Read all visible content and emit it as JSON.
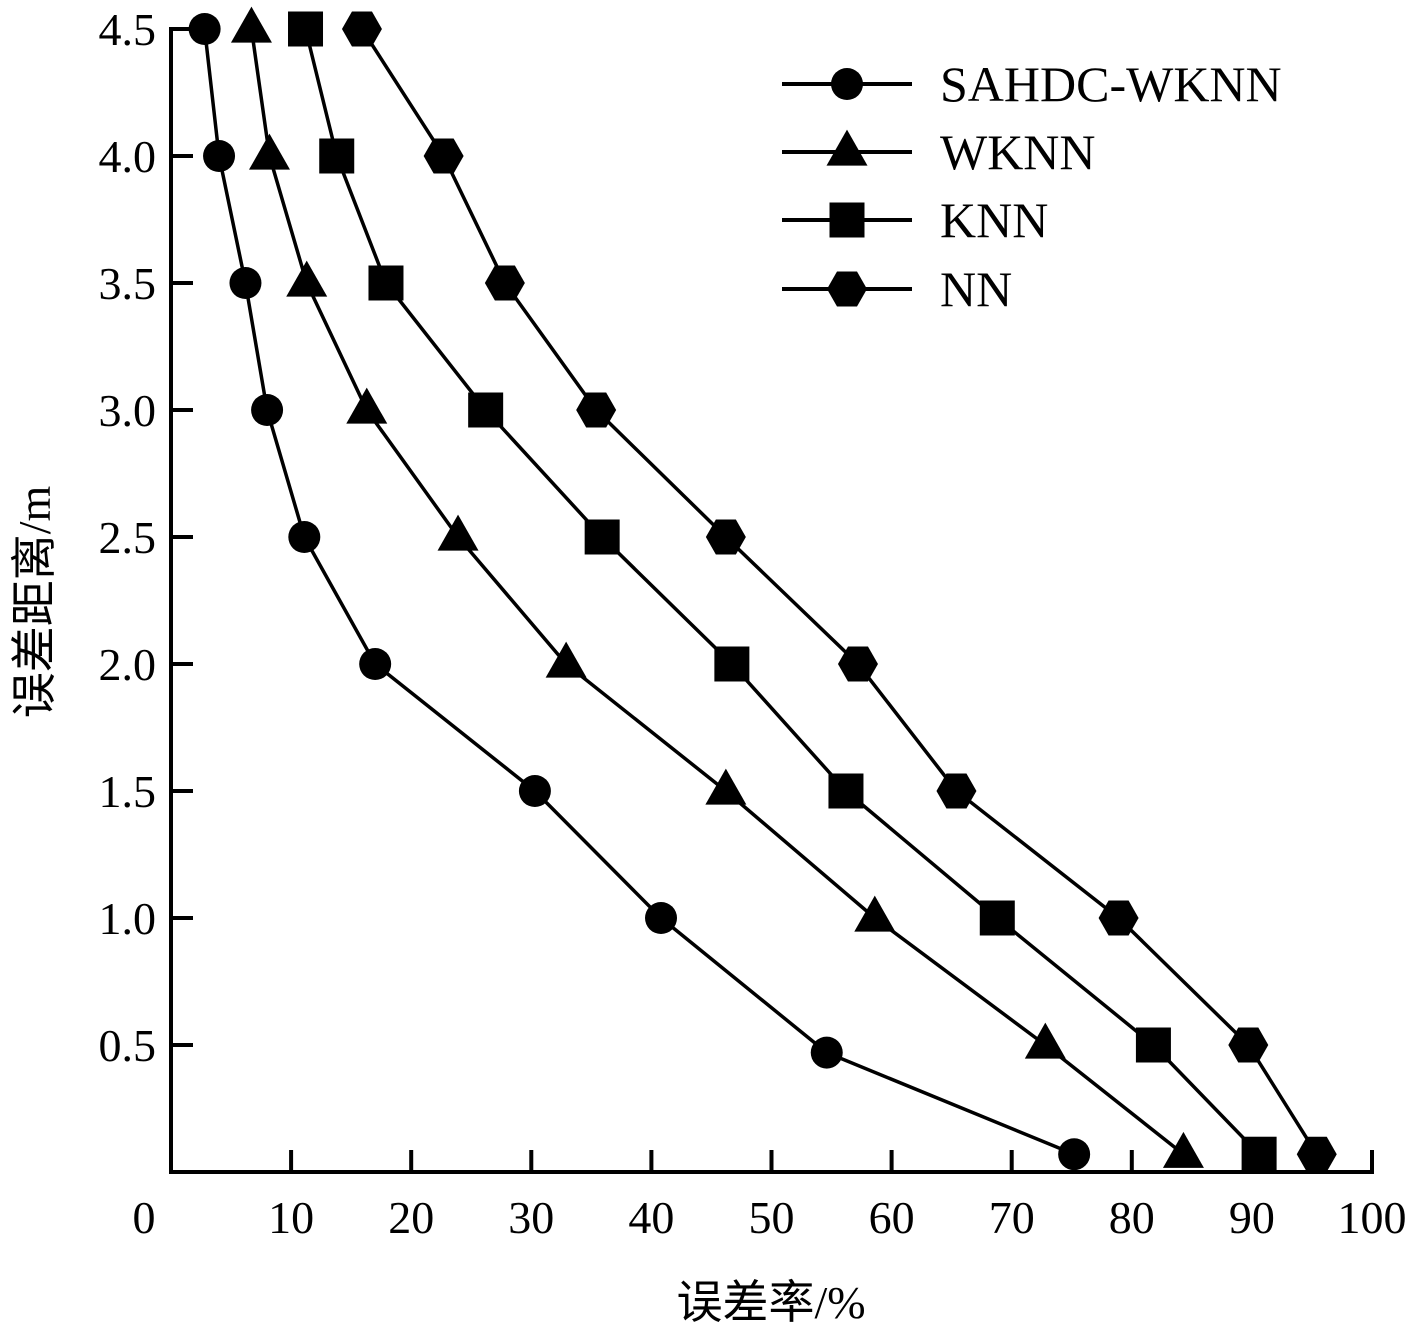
{
  "chart_data": {
    "type": "line",
    "title": "",
    "xlabel": "误差率/%",
    "ylabel": "误差距离/m",
    "xlim": [
      0,
      100
    ],
    "ylim": [
      0,
      4.5
    ],
    "xticks": [
      "0",
      "10",
      "20",
      "30",
      "40",
      "50",
      "60",
      "70",
      "80",
      "90",
      "100"
    ],
    "yticks": [
      "0.5",
      "1.0",
      "1.5",
      "2.0",
      "2.5",
      "3.0",
      "3.5",
      "4.0",
      "4.5"
    ],
    "grid": false,
    "legend_position": "upper right",
    "series": [
      {
        "name": "SAHDC-WKNN",
        "marker": "circle",
        "points": [
          {
            "x": 75.2,
            "y": 0.07
          },
          {
            "x": 54.6,
            "y": 0.47
          },
          {
            "x": 40.8,
            "y": 1.0
          },
          {
            "x": 30.3,
            "y": 1.5
          },
          {
            "x": 17.0,
            "y": 2.0
          },
          {
            "x": 11.1,
            "y": 2.5
          },
          {
            "x": 8.0,
            "y": 3.0
          },
          {
            "x": 6.2,
            "y": 3.5
          },
          {
            "x": 4.0,
            "y": 4.0
          },
          {
            "x": 2.8,
            "y": 4.5
          }
        ]
      },
      {
        "name": "WKNN",
        "marker": "triangle",
        "points": [
          {
            "x": 84.3,
            "y": 0.07
          },
          {
            "x": 72.8,
            "y": 0.5
          },
          {
            "x": 58.6,
            "y": 1.0
          },
          {
            "x": 46.2,
            "y": 1.5
          },
          {
            "x": 32.9,
            "y": 2.0
          },
          {
            "x": 23.9,
            "y": 2.5
          },
          {
            "x": 16.3,
            "y": 3.0
          },
          {
            "x": 11.3,
            "y": 3.5
          },
          {
            "x": 8.2,
            "y": 4.0
          },
          {
            "x": 6.7,
            "y": 4.5
          }
        ]
      },
      {
        "name": "KNN",
        "marker": "square",
        "points": [
          {
            "x": 90.6,
            "y": 0.07
          },
          {
            "x": 81.8,
            "y": 0.5
          },
          {
            "x": 68.8,
            "y": 1.0
          },
          {
            "x": 56.2,
            "y": 1.5
          },
          {
            "x": 46.7,
            "y": 2.0
          },
          {
            "x": 35.9,
            "y": 2.5
          },
          {
            "x": 26.2,
            "y": 3.0
          },
          {
            "x": 17.9,
            "y": 3.5
          },
          {
            "x": 13.8,
            "y": 4.0
          },
          {
            "x": 11.2,
            "y": 4.5
          }
        ]
      },
      {
        "name": "NN",
        "marker": "hexagon",
        "points": [
          {
            "x": 95.4,
            "y": 0.07
          },
          {
            "x": 89.7,
            "y": 0.5
          },
          {
            "x": 78.9,
            "y": 1.0
          },
          {
            "x": 65.4,
            "y": 1.5
          },
          {
            "x": 57.2,
            "y": 2.0
          },
          {
            "x": 46.2,
            "y": 2.5
          },
          {
            "x": 35.4,
            "y": 3.0
          },
          {
            "x": 27.8,
            "y": 3.5
          },
          {
            "x": 22.7,
            "y": 4.0
          },
          {
            "x": 15.9,
            "y": 4.5
          }
        ]
      }
    ]
  },
  "legend": {
    "items": [
      {
        "label": "SAHDC-WKNN",
        "marker": "circle-icon"
      },
      {
        "label": "WKNN",
        "marker": "triangle-icon"
      },
      {
        "label": "KNN",
        "marker": "square-icon"
      },
      {
        "label": "NN",
        "marker": "hexagon-icon"
      }
    ]
  },
  "axes": {
    "x_title": "误差率/%",
    "y_title": "误差距离/m"
  },
  "colors": {
    "ink": "#000000",
    "background": "#ffffff"
  }
}
